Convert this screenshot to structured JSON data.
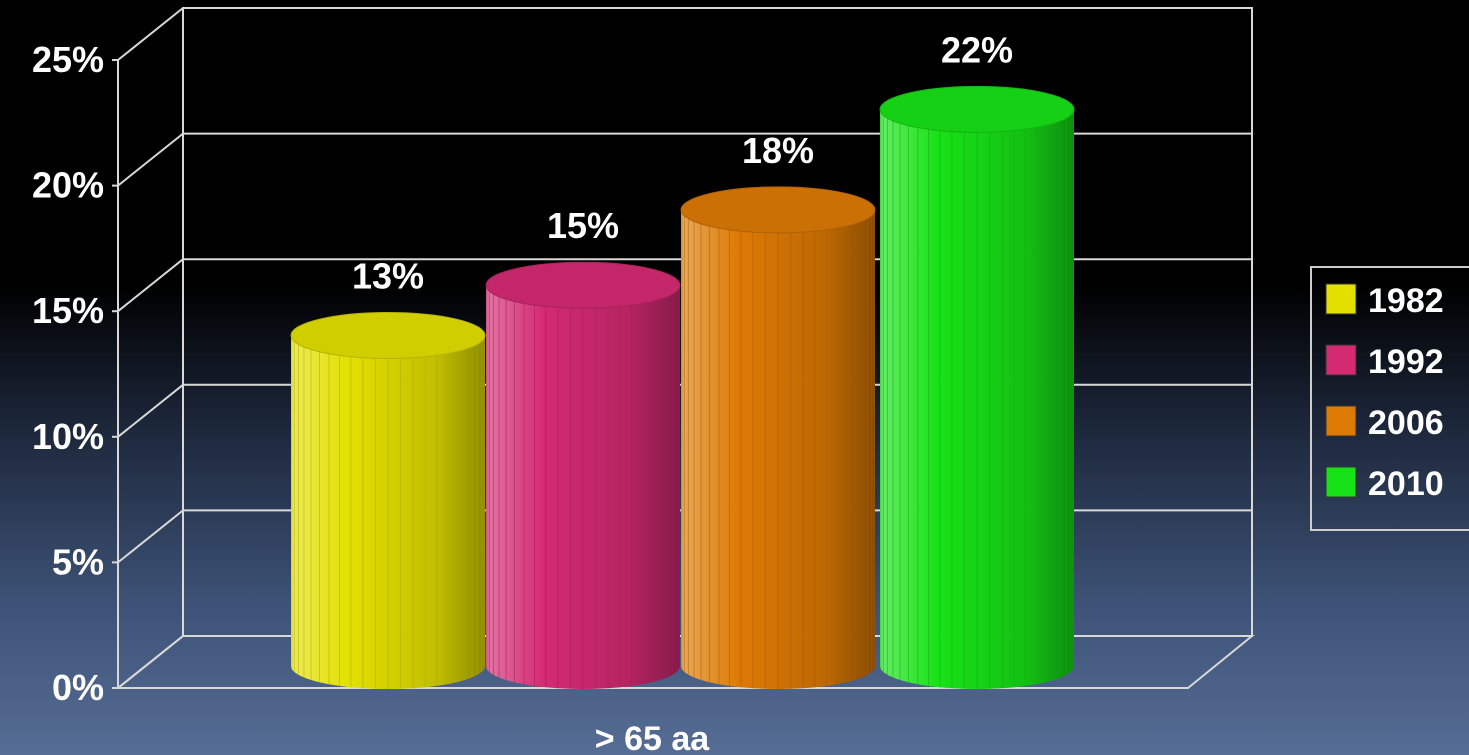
{
  "chart_data": {
    "type": "bar",
    "style": "3d-cylinder",
    "categories": [
      "> 65 aa"
    ],
    "series": [
      {
        "name": "1982",
        "values": [
          13
        ],
        "label": "13%",
        "color": "#e3e000"
      },
      {
        "name": "1992",
        "values": [
          15
        ],
        "label": "15%",
        "color": "#d42a72"
      },
      {
        "name": "2006",
        "values": [
          18
        ],
        "label": "18%",
        "color": "#dd7a04"
      },
      {
        "name": "2010",
        "values": [
          22
        ],
        "label": "22%",
        "color": "#17e217"
      }
    ],
    "ylim": [
      0,
      25
    ],
    "yticks": [
      0,
      5,
      10,
      15,
      20,
      25
    ],
    "ytick_labels": [
      "0%",
      "5%",
      "10%",
      "15%",
      "20%",
      "25%"
    ],
    "xlabel": "> 65 aa",
    "grid": true,
    "legend": "right"
  }
}
